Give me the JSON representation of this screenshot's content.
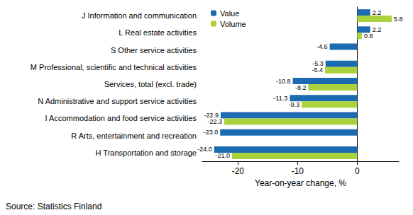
{
  "chart_data": {
    "type": "bar",
    "orientation": "horizontal",
    "categories": [
      "J Information and communication",
      "L Real estate activities",
      "S Other service activities",
      "M Professional, scientific and technical activities",
      "Services, total (excl. trade)",
      "N Administrative and support service activities",
      "I Accommodation and food service activities",
      "R Arts, entertainment and recreation",
      "H Transportation and storage"
    ],
    "series": [
      {
        "name": "Value",
        "color": "#1c6bb0",
        "values": [
          2.2,
          2.2,
          -4.6,
          -5.3,
          -10.8,
          -11.3,
          -22.9,
          -23.0,
          -24.0
        ],
        "value_labels": [
          "2.2",
          "2.2",
          "-4.6",
          "-5.3",
          "-10.8",
          "-11.3",
          "-22.9",
          "-23.0",
          "-24.0"
        ]
      },
      {
        "name": "Volume",
        "color": "#a9d23c",
        "values": [
          5.8,
          0.8,
          null,
          -5.4,
          -8.2,
          -9.3,
          -22.3,
          null,
          -21.0
        ],
        "value_labels": [
          "5.8",
          "0.8",
          null,
          "-5.4",
          "-8.2",
          "-9.3",
          "-22.3",
          null,
          "-21.0"
        ]
      }
    ],
    "xlabel": "Year-on-year change, %",
    "xlim": [
      -26,
      7
    ],
    "xticks": [
      -20,
      -10,
      0
    ],
    "grid": false,
    "legend": "top-left",
    "data_labels": true,
    "annotations": [
      "Source: Statistics Finland"
    ]
  }
}
